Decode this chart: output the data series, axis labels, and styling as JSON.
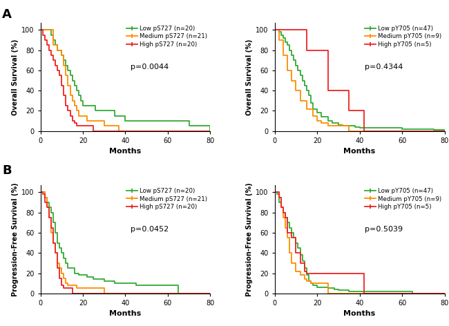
{
  "colors": {
    "low": "#33AA33",
    "medium": "#FF8C00",
    "high": "#EE2222"
  },
  "subplot_A_left": {
    "ylabel": "Overall Survival (%)",
    "xlabel": "Months",
    "pvalue": "p=0.0044",
    "legend": [
      "Low pS727 (n=20)",
      "Medium pS727 (n=21)",
      "High pS727 (n=20)"
    ],
    "low": {
      "x": [
        0,
        3,
        5,
        6,
        7,
        8,
        9,
        10,
        11,
        12,
        13,
        14,
        15,
        16,
        17,
        18,
        19,
        20,
        22,
        24,
        26,
        28,
        30,
        32,
        35,
        38,
        40,
        45,
        50,
        55,
        60,
        65,
        70,
        75,
        80
      ],
      "y": [
        100,
        100,
        95,
        90,
        85,
        80,
        80,
        75,
        70,
        65,
        60,
        55,
        50,
        45,
        40,
        35,
        30,
        25,
        25,
        25,
        20,
        20,
        20,
        20,
        15,
        15,
        10,
        10,
        10,
        10,
        10,
        10,
        5,
        5,
        0
      ]
    },
    "medium": {
      "x": [
        0,
        3,
        6,
        8,
        10,
        11,
        12,
        13,
        14,
        15,
        16,
        17,
        18,
        20,
        22,
        25,
        27,
        30,
        33,
        35,
        37,
        80
      ],
      "y": [
        100,
        100,
        85,
        80,
        75,
        65,
        55,
        45,
        35,
        30,
        25,
        20,
        15,
        15,
        10,
        10,
        10,
        5,
        5,
        5,
        0,
        0
      ]
    },
    "high": {
      "x": [
        0,
        1,
        2,
        3,
        4,
        5,
        6,
        7,
        8,
        9,
        10,
        11,
        12,
        13,
        14,
        15,
        16,
        17,
        18,
        20,
        22,
        25,
        80
      ],
      "y": [
        100,
        95,
        90,
        85,
        80,
        75,
        70,
        65,
        60,
        55,
        45,
        35,
        25,
        20,
        15,
        10,
        8,
        5,
        5,
        5,
        5,
        0,
        0
      ]
    }
  },
  "subplot_A_right": {
    "ylabel": "Overall Survival (%)",
    "xlabel": "Months",
    "pvalue": "p=0.4344",
    "legend": [
      "Low pY705 (n=47)",
      "Medium pY705 (n=9)",
      "High pY705 (n=5)"
    ],
    "low": {
      "x": [
        0,
        2,
        3,
        4,
        5,
        6,
        7,
        8,
        9,
        10,
        11,
        12,
        13,
        14,
        15,
        16,
        17,
        18,
        20,
        22,
        25,
        27,
        30,
        32,
        35,
        38,
        40,
        42,
        45,
        50,
        55,
        60,
        65,
        70,
        75,
        80
      ],
      "y": [
        100,
        98,
        95,
        92,
        88,
        85,
        80,
        75,
        70,
        65,
        60,
        55,
        50,
        45,
        40,
        35,
        28,
        22,
        18,
        14,
        10,
        8,
        6,
        5,
        5,
        4,
        3,
        3,
        3,
        3,
        3,
        2,
        2,
        2,
        1,
        0
      ]
    },
    "medium": {
      "x": [
        0,
        2,
        4,
        6,
        8,
        10,
        12,
        15,
        18,
        20,
        22,
        25,
        30,
        35,
        38,
        42,
        80
      ],
      "y": [
        100,
        90,
        75,
        60,
        50,
        40,
        30,
        22,
        15,
        10,
        8,
        5,
        5,
        0,
        0,
        0,
        0
      ]
    },
    "high": {
      "x": [
        0,
        5,
        10,
        15,
        18,
        20,
        25,
        30,
        35,
        38,
        40,
        42,
        45,
        80
      ],
      "y": [
        100,
        100,
        100,
        80,
        80,
        80,
        40,
        40,
        20,
        20,
        20,
        0,
        0,
        0
      ]
    }
  },
  "subplot_B_left": {
    "ylabel": "Progression-Free Survival (%)",
    "xlabel": "Months",
    "pvalue": "p=0.0452",
    "legend": [
      "Low pS727 (n=20)",
      "Medium pS727 (n=21)",
      "High pS727 (n=20)"
    ],
    "low": {
      "x": [
        0,
        2,
        3,
        4,
        5,
        6,
        7,
        8,
        9,
        10,
        11,
        12,
        13,
        14,
        15,
        16,
        17,
        18,
        20,
        22,
        25,
        28,
        30,
        35,
        40,
        45,
        50,
        55,
        60,
        65,
        80
      ],
      "y": [
        100,
        95,
        90,
        85,
        80,
        70,
        60,
        50,
        45,
        40,
        35,
        30,
        25,
        25,
        25,
        20,
        20,
        18,
        18,
        16,
        14,
        14,
        12,
        10,
        10,
        8,
        8,
        8,
        8,
        0,
        0
      ]
    },
    "medium": {
      "x": [
        0,
        2,
        3,
        4,
        5,
        6,
        7,
        8,
        9,
        10,
        11,
        12,
        13,
        15,
        17,
        20,
        25,
        30,
        35,
        80
      ],
      "y": [
        100,
        95,
        85,
        75,
        60,
        50,
        40,
        30,
        25,
        20,
        15,
        10,
        8,
        8,
        5,
        5,
        5,
        0,
        0,
        0
      ]
    },
    "high": {
      "x": [
        0,
        1,
        2,
        3,
        4,
        5,
        6,
        7,
        8,
        9,
        10,
        11,
        12,
        15,
        80
      ],
      "y": [
        100,
        98,
        90,
        85,
        75,
        65,
        50,
        40,
        25,
        15,
        8,
        5,
        5,
        0,
        0
      ]
    }
  },
  "subplot_B_right": {
    "ylabel": "Progression-Free Survival (%)",
    "xlabel": "Months",
    "pvalue": "p=0.5039",
    "legend": [
      "Low pY705 (n=47)",
      "Medium pY705 (n=9)",
      "High pY705 (n=5)"
    ],
    "low": {
      "x": [
        0,
        1,
        2,
        3,
        4,
        5,
        6,
        7,
        8,
        9,
        10,
        11,
        12,
        13,
        14,
        15,
        16,
        17,
        18,
        20,
        22,
        25,
        28,
        30,
        35,
        40,
        45,
        50,
        60,
        65,
        80
      ],
      "y": [
        100,
        98,
        90,
        85,
        80,
        75,
        70,
        65,
        60,
        55,
        50,
        45,
        38,
        32,
        25,
        18,
        12,
        10,
        8,
        6,
        6,
        5,
        4,
        3,
        2,
        2,
        2,
        2,
        2,
        0,
        0
      ]
    },
    "medium": {
      "x": [
        0,
        2,
        3,
        4,
        5,
        6,
        7,
        8,
        10,
        12,
        14,
        15,
        17,
        20,
        22,
        25,
        30,
        35,
        80
      ],
      "y": [
        100,
        95,
        85,
        75,
        65,
        55,
        40,
        30,
        22,
        18,
        14,
        12,
        10,
        10,
        10,
        0,
        0,
        0,
        0
      ]
    },
    "high": {
      "x": [
        0,
        1,
        2,
        3,
        4,
        5,
        6,
        7,
        8,
        10,
        12,
        14,
        15,
        18,
        20,
        22,
        25,
        30,
        35,
        40,
        42,
        45,
        80
      ],
      "y": [
        100,
        100,
        95,
        85,
        80,
        75,
        60,
        60,
        55,
        40,
        30,
        22,
        20,
        20,
        20,
        20,
        20,
        20,
        20,
        20,
        0,
        0,
        0
      ]
    }
  }
}
